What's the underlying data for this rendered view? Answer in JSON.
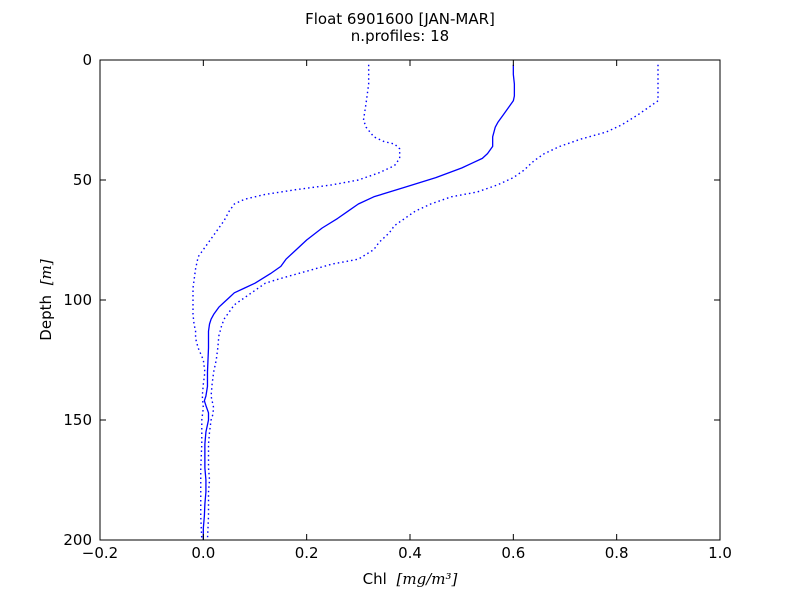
{
  "chart_data": {
    "type": "line",
    "title": "Float 6901600 [JAN-MAR]",
    "subtitle": "n.profiles: 18",
    "xlabel": "Chl",
    "xlabel_unit": "[mg/m³]",
    "ylabel": "Depth",
    "ylabel_unit": "[m]",
    "xlim": [
      -0.2,
      1.0
    ],
    "ylim": [
      200,
      0
    ],
    "y_inverted": true,
    "xticks": [
      -0.2,
      0.0,
      0.2,
      0.4,
      0.6,
      0.8,
      1.0
    ],
    "xtick_labels": [
      "−0.2",
      "0.0",
      "0.2",
      "0.4",
      "0.6",
      "0.8",
      "1.0"
    ],
    "yticks": [
      0,
      50,
      100,
      150,
      200
    ],
    "ytick_labels": [
      "0",
      "50",
      "100",
      "150",
      "200"
    ],
    "grid": false,
    "series": [
      {
        "style": "solid",
        "color": "#0000ff",
        "points": [
          [
            0.6,
            2
          ],
          [
            0.6,
            6
          ],
          [
            0.602,
            10
          ],
          [
            0.602,
            15
          ],
          [
            0.6,
            17
          ],
          [
            0.59,
            20
          ],
          [
            0.58,
            23
          ],
          [
            0.57,
            26
          ],
          [
            0.565,
            28
          ],
          [
            0.56,
            32
          ],
          [
            0.56,
            36
          ],
          [
            0.55,
            39
          ],
          [
            0.54,
            41
          ],
          [
            0.52,
            43
          ],
          [
            0.5,
            45
          ],
          [
            0.45,
            49
          ],
          [
            0.39,
            53
          ],
          [
            0.33,
            57
          ],
          [
            0.3,
            60
          ],
          [
            0.28,
            63
          ],
          [
            0.26,
            66
          ],
          [
            0.23,
            70
          ],
          [
            0.2,
            75
          ],
          [
            0.18,
            79
          ],
          [
            0.16,
            83
          ],
          [
            0.15,
            86
          ],
          [
            0.13,
            89
          ],
          [
            0.1,
            93
          ],
          [
            0.08,
            95
          ],
          [
            0.06,
            97
          ],
          [
            0.05,
            99
          ],
          [
            0.04,
            101
          ],
          [
            0.03,
            103
          ],
          [
            0.02,
            106
          ],
          [
            0.015,
            108
          ],
          [
            0.012,
            110
          ],
          [
            0.01,
            113
          ],
          [
            0.01,
            120
          ],
          [
            0.008,
            130
          ],
          [
            0.008,
            136
          ],
          [
            0.005,
            140
          ],
          [
            0.002,
            142
          ],
          [
            0.005,
            144
          ],
          [
            0.01,
            147
          ],
          [
            0.01,
            150
          ],
          [
            0.005,
            155
          ],
          [
            0.003,
            160
          ],
          [
            0.003,
            170
          ],
          [
            0.005,
            175
          ],
          [
            0.005,
            180
          ],
          [
            0.003,
            185
          ],
          [
            0.002,
            190
          ],
          [
            0.0,
            195
          ],
          [
            0.0,
            200
          ]
        ]
      },
      {
        "style": "dotted",
        "color": "#0000ff",
        "points": [
          [
            0.32,
            2
          ],
          [
            0.32,
            10
          ],
          [
            0.315,
            18
          ],
          [
            0.31,
            25
          ],
          [
            0.315,
            28
          ],
          [
            0.33,
            32
          ],
          [
            0.35,
            34
          ],
          [
            0.37,
            35
          ],
          [
            0.38,
            37
          ],
          [
            0.38,
            41
          ],
          [
            0.37,
            44
          ],
          [
            0.34,
            47
          ],
          [
            0.3,
            50
          ],
          [
            0.25,
            52
          ],
          [
            0.18,
            54
          ],
          [
            0.12,
            56
          ],
          [
            0.08,
            58
          ],
          [
            0.06,
            60
          ],
          [
            0.05,
            63
          ],
          [
            0.04,
            67
          ],
          [
            0.03,
            70
          ],
          [
            0.02,
            73
          ],
          [
            0.01,
            76
          ],
          [
            0.0,
            79
          ],
          [
            -0.01,
            82
          ],
          [
            -0.015,
            87
          ],
          [
            -0.02,
            95
          ],
          [
            -0.02,
            100
          ],
          [
            -0.02,
            106
          ],
          [
            -0.018,
            110
          ],
          [
            -0.015,
            113
          ],
          [
            -0.015,
            116
          ],
          [
            -0.01,
            120
          ],
          [
            0.0,
            125
          ],
          [
            0.003,
            130
          ],
          [
            0.0,
            135
          ],
          [
            -0.002,
            140
          ],
          [
            0.0,
            145
          ],
          [
            -0.003,
            150
          ],
          [
            -0.003,
            160
          ],
          [
            -0.005,
            170
          ],
          [
            -0.005,
            180
          ],
          [
            -0.005,
            190
          ],
          [
            -0.003,
            200
          ]
        ]
      },
      {
        "style": "dotted",
        "color": "#0000ff",
        "points": [
          [
            0.88,
            2
          ],
          [
            0.88,
            10
          ],
          [
            0.88,
            17
          ],
          [
            0.86,
            20
          ],
          [
            0.84,
            23
          ],
          [
            0.81,
            27
          ],
          [
            0.78,
            30
          ],
          [
            0.73,
            33
          ],
          [
            0.69,
            36
          ],
          [
            0.66,
            39
          ],
          [
            0.64,
            42
          ],
          [
            0.62,
            46
          ],
          [
            0.6,
            49
          ],
          [
            0.57,
            52
          ],
          [
            0.53,
            55
          ],
          [
            0.48,
            57
          ],
          [
            0.44,
            60
          ],
          [
            0.41,
            63
          ],
          [
            0.39,
            66
          ],
          [
            0.37,
            69
          ],
          [
            0.36,
            72
          ],
          [
            0.34,
            76
          ],
          [
            0.33,
            79
          ],
          [
            0.3,
            83
          ],
          [
            0.25,
            85
          ],
          [
            0.2,
            88
          ],
          [
            0.15,
            91
          ],
          [
            0.12,
            93
          ],
          [
            0.1,
            96
          ],
          [
            0.08,
            99
          ],
          [
            0.06,
            102
          ],
          [
            0.05,
            105
          ],
          [
            0.04,
            108
          ],
          [
            0.035,
            111
          ],
          [
            0.03,
            115
          ],
          [
            0.028,
            120
          ],
          [
            0.025,
            125
          ],
          [
            0.02,
            130
          ],
          [
            0.017,
            135
          ],
          [
            0.015,
            140
          ],
          [
            0.018,
            143
          ],
          [
            0.02,
            145
          ],
          [
            0.018,
            148
          ],
          [
            0.015,
            150
          ],
          [
            0.012,
            155
          ],
          [
            0.01,
            160
          ],
          [
            0.01,
            170
          ],
          [
            0.012,
            175
          ],
          [
            0.01,
            180
          ],
          [
            0.01,
            190
          ],
          [
            0.008,
            200
          ]
        ]
      }
    ]
  }
}
